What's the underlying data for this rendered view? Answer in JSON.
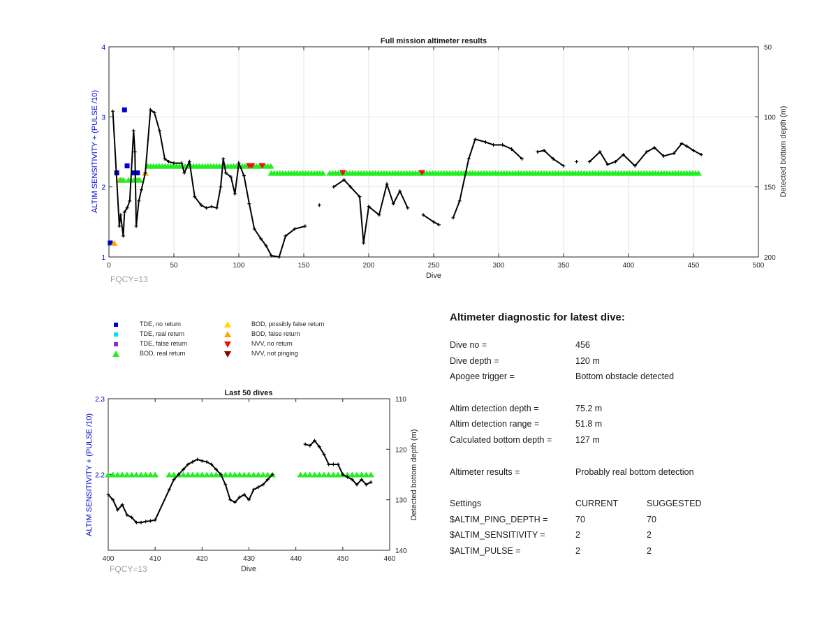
{
  "colors": {
    "axis_left": "#0000cc",
    "tde_no_return": "#0000cd",
    "tde_real_return": "#00e5ee",
    "tde_false_return": "#8a2be2",
    "bod_real_return": "#22ee22",
    "bod_possibly_false": "#ffd700",
    "bod_false_return": "#ffa500",
    "nvv_no_return": "#ee1111",
    "nvv_not_pinging": "#8b0000",
    "depth_line": "#000000",
    "fqcy_label": "#a0a0a0"
  },
  "chart_data": [
    {
      "type": "scatter+line",
      "title": "Full mission altimeter results",
      "xlabel": "Dive",
      "ylabel_left": "ALTIM SENSITIVITY + (PULSE /10)",
      "ylabel_right": "Detected bottom depth (m)",
      "xlim": [
        0,
        500
      ],
      "ylim_left": [
        1,
        4
      ],
      "ylim_right": [
        50,
        200
      ],
      "right_axis_reversed": true,
      "xticks": [
        "0",
        "50",
        "100",
        "150",
        "200",
        "250",
        "300",
        "350",
        "400",
        "450",
        "500"
      ],
      "yticks_left": [
        "1",
        "2",
        "3",
        "4"
      ],
      "yticks_right": [
        "50",
        "100",
        "150",
        "200"
      ],
      "grid": true,
      "annotation": "FQCY=13",
      "markers": [
        {
          "category": "TDE, no return",
          "points": [
            [
              1,
              1.2
            ],
            [
              6,
              2.2
            ],
            [
              12,
              3.1
            ],
            [
              14,
              2.3
            ],
            [
              19,
              2.2
            ],
            [
              22,
              2.2
            ]
          ]
        },
        {
          "category": "BOD, false return",
          "points": [
            [
              4,
              1.2
            ],
            [
              8,
              2.1
            ],
            [
              10,
              2.1
            ],
            [
              23,
              2.1
            ],
            [
              28,
              2.2
            ]
          ]
        },
        {
          "category": "BOD, real return",
          "segments": [
            [
              9,
              12,
              2.1
            ],
            [
              15,
              25,
              2.1
            ],
            [
              30,
              125,
              2.3
            ],
            [
              125,
              166,
              2.2
            ],
            [
              170,
              455,
              2.2
            ]
          ]
        },
        {
          "category": "NVV, no return",
          "points": [
            [
              108,
              2.3
            ],
            [
              110,
              2.3
            ],
            [
              118,
              2.3
            ],
            [
              180,
              2.2
            ],
            [
              241,
              2.2
            ]
          ]
        }
      ],
      "depth_series": [
        [
          3,
          96
        ],
        [
          8,
          178
        ],
        [
          9,
          170
        ],
        [
          11,
          185
        ],
        [
          12,
          168
        ],
        [
          14,
          165
        ],
        [
          16,
          160
        ],
        [
          19,
          110
        ],
        [
          20,
          125
        ],
        [
          21,
          178
        ],
        [
          23,
          160
        ],
        [
          25,
          152
        ],
        [
          28,
          140
        ],
        [
          32,
          95
        ],
        [
          35,
          97
        ],
        [
          39,
          110
        ],
        [
          43,
          130
        ],
        [
          46,
          132
        ],
        [
          50,
          133
        ],
        [
          56,
          133
        ],
        [
          58,
          140
        ],
        [
          62,
          132
        ],
        [
          66,
          157
        ],
        [
          71,
          163
        ],
        [
          75,
          165
        ],
        [
          79,
          164
        ],
        [
          83,
          165
        ],
        [
          86,
          150
        ],
        [
          88,
          130
        ],
        [
          90,
          140
        ],
        [
          94,
          143
        ],
        [
          97,
          155
        ],
        [
          100,
          133
        ],
        [
          104,
          142
        ],
        [
          108,
          162
        ],
        [
          112,
          180
        ],
        [
          117,
          187
        ],
        [
          121,
          192
        ],
        [
          125,
          199
        ],
        [
          131,
          200
        ],
        [
          136,
          185
        ],
        [
          143,
          180
        ],
        [
          151,
          178
        ],
        [
          162,
          163
        ],
        [
          173,
          150
        ],
        [
          181,
          145
        ],
        [
          186,
          150
        ],
        [
          193,
          157
        ],
        [
          196,
          190
        ],
        [
          200,
          164
        ],
        [
          208,
          170
        ],
        [
          214,
          148
        ],
        [
          219,
          162
        ],
        [
          224,
          153
        ],
        [
          230,
          165
        ],
        [
          242,
          170
        ],
        [
          250,
          175
        ],
        [
          254,
          177
        ],
        [
          265,
          172
        ],
        [
          270,
          160
        ],
        [
          277,
          130
        ],
        [
          282,
          116
        ],
        [
          290,
          118
        ],
        [
          296,
          120
        ],
        [
          303,
          120
        ],
        [
          310,
          123
        ],
        [
          318,
          130
        ],
        [
          330,
          125
        ],
        [
          335,
          124
        ],
        [
          342,
          130
        ],
        [
          350,
          135
        ],
        [
          360,
          132
        ],
        [
          370,
          132
        ],
        [
          378,
          125
        ],
        [
          384,
          134
        ],
        [
          390,
          132
        ],
        [
          396,
          127
        ],
        [
          405,
          135
        ],
        [
          414,
          125
        ],
        [
          420,
          122
        ],
        [
          427,
          128
        ],
        [
          435,
          126
        ],
        [
          441,
          119
        ],
        [
          445,
          121
        ],
        [
          450,
          124
        ],
        [
          456,
          127
        ]
      ]
    },
    {
      "type": "scatter+line",
      "title": "Last 50 dives",
      "xlabel": "Dive",
      "ylabel_left": "ALTIM SENSITIVITY + (PULSE /10)",
      "ylabel_right": "Detected bottom depth (m)",
      "xlim": [
        400,
        460
      ],
      "ylim_left": [
        2.1,
        2.3
      ],
      "ylim_right": [
        110,
        140
      ],
      "right_axis_reversed": true,
      "xticks": [
        "400",
        "410",
        "420",
        "430",
        "440",
        "450",
        "460"
      ],
      "yticks_left": [
        "2.2",
        "2.3"
      ],
      "yticks_right": [
        "110",
        "120",
        "130",
        "140"
      ],
      "grid": false,
      "annotation": "FQCY=13",
      "markers": [
        {
          "category": "BOD, real return",
          "segments": [
            [
              400,
              410,
              2.2
            ],
            [
              413,
              435,
              2.2
            ],
            [
              441,
              456,
              2.2
            ]
          ]
        }
      ],
      "depth_series": [
        [
          400,
          129
        ],
        [
          401,
          130
        ],
        [
          402,
          132
        ],
        [
          403,
          131
        ],
        [
          404,
          133
        ],
        [
          405,
          133.5
        ],
        [
          406,
          134.5
        ],
        [
          407,
          134.5
        ],
        [
          408,
          134.3
        ],
        [
          409,
          134.2
        ],
        [
          410,
          134
        ],
        [
          413,
          128
        ],
        [
          414,
          126
        ],
        [
          415,
          125
        ],
        [
          416,
          124
        ],
        [
          417,
          123
        ],
        [
          418,
          122.5
        ],
        [
          419,
          122
        ],
        [
          420,
          122.3
        ],
        [
          421,
          122.5
        ],
        [
          422,
          123
        ],
        [
          423,
          124
        ],
        [
          424,
          125
        ],
        [
          425,
          127
        ],
        [
          426,
          130
        ],
        [
          427,
          130.5
        ],
        [
          428,
          129.5
        ],
        [
          429,
          129
        ],
        [
          430,
          130
        ],
        [
          431,
          128
        ],
        [
          432,
          127.5
        ],
        [
          433,
          127
        ],
        [
          434,
          126
        ],
        [
          435,
          125
        ],
        [
          442,
          119
        ],
        [
          443,
          119.3
        ],
        [
          444,
          118.3
        ],
        [
          445,
          119.5
        ],
        [
          446,
          121
        ],
        [
          447,
          123
        ],
        [
          448,
          123
        ],
        [
          449,
          123
        ],
        [
          450,
          125
        ],
        [
          451,
          125.5
        ],
        [
          452,
          126
        ],
        [
          453,
          127
        ],
        [
          454,
          126
        ],
        [
          455,
          127
        ],
        [
          456,
          126.5
        ]
      ]
    }
  ],
  "legend": [
    {
      "label": "TDE, no return",
      "shape": "square",
      "color_key": "tde_no_return"
    },
    {
      "label": "TDE, real return",
      "shape": "square",
      "color_key": "tde_real_return"
    },
    {
      "label": "TDE, false return",
      "shape": "square",
      "color_key": "tde_false_return"
    },
    {
      "label": "BOD, real return",
      "shape": "triangle-up",
      "color_key": "bod_real_return"
    },
    {
      "label": "BOD, possibly false return",
      "shape": "triangle-up",
      "color_key": "bod_possibly_false"
    },
    {
      "label": "BOD, false return",
      "shape": "triangle-up",
      "color_key": "bod_false_return"
    },
    {
      "label": "NVV, no return",
      "shape": "triangle-down",
      "color_key": "nvv_no_return"
    },
    {
      "label": "NVV, not pinging",
      "shape": "triangle-down",
      "color_key": "nvv_not_pinging"
    }
  ],
  "diagnostic": {
    "title": "Altimeter diagnostic for latest dive:",
    "dive_no_label": "Dive no =",
    "dive_no": "456",
    "dive_depth_label": "Dive depth =",
    "dive_depth": "120 m",
    "apogee_label": "Apogee trigger =",
    "apogee": "Bottom obstacle detected",
    "det_depth_label": "Altim detection depth =",
    "det_depth": "75.2 m",
    "det_range_label": "Altim detection range =",
    "det_range": "51.8 m",
    "calc_depth_label": "Calculated bottom depth =",
    "calc_depth": "127 m",
    "results_label": "Altimeter results =",
    "results": "Probably real bottom detection",
    "settings_label": "Settings",
    "current_label": "CURRENT",
    "suggested_label": "SUGGESTED",
    "settings": [
      {
        "name": "$ALTIM_PING_DEPTH =",
        "current": "70",
        "suggested": "70"
      },
      {
        "name": "$ALTIM_SENSITIVITY =",
        "current": "2",
        "suggested": "2"
      },
      {
        "name": "$ALTIM_PULSE =",
        "current": "2",
        "suggested": "2"
      }
    ]
  }
}
